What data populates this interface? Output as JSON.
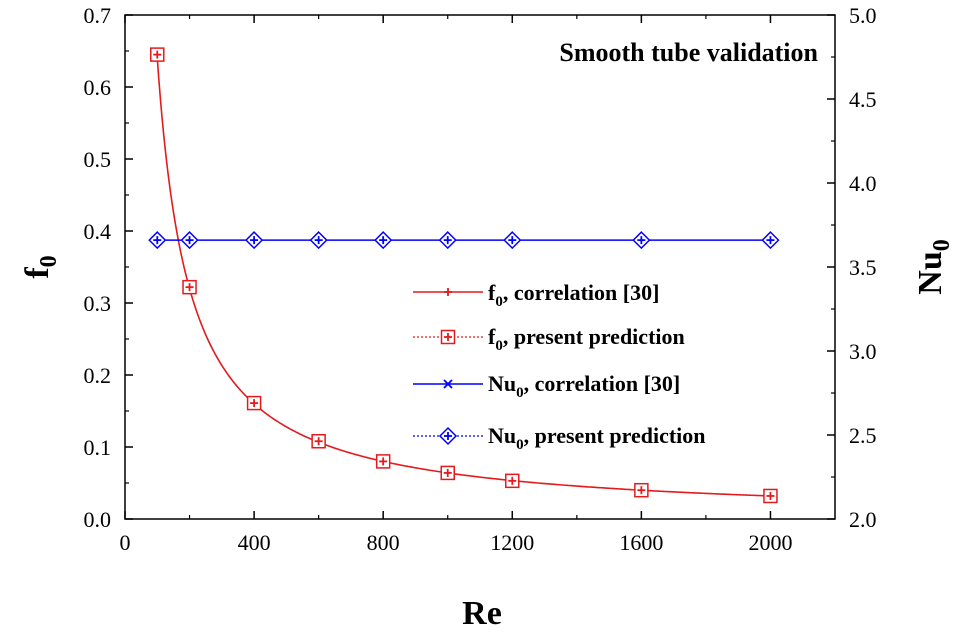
{
  "chart_data": {
    "type": "line",
    "title": "Smooth tube validation",
    "xlabel": "Re",
    "ylabel_left": "f",
    "ylabel_left_sub": "0",
    "ylabel_right": "Nu",
    "ylabel_right_sub": "0",
    "xlim": [
      0,
      2200
    ],
    "ylim_left": [
      0.0,
      0.7
    ],
    "ylim_right": [
      2.0,
      5.0
    ],
    "x_ticks": [
      0,
      400,
      800,
      1200,
      1600,
      2000
    ],
    "x_tick_labels": [
      "0",
      "400",
      "800",
      "1200",
      "1600",
      "2000"
    ],
    "y_left_ticks": [
      0.0,
      0.1,
      0.2,
      0.3,
      0.4,
      0.5,
      0.6,
      0.7
    ],
    "y_left_tick_labels": [
      "0.0",
      "0.1",
      "0.2",
      "0.3",
      "0.4",
      "0.5",
      "0.6",
      "0.7"
    ],
    "y_right_ticks": [
      2.0,
      2.5,
      3.0,
      3.5,
      4.0,
      4.5,
      5.0
    ],
    "y_right_tick_labels": [
      "2.0",
      "2.5",
      "3.0",
      "3.5",
      "4.0",
      "4.5",
      "5.0"
    ],
    "x_points": [
      100,
      200,
      400,
      600,
      800,
      1000,
      1200,
      1600,
      2000
    ],
    "series": [
      {
        "name_main": "f",
        "name_sub": "0",
        "name_rest": ", correlation [30]",
        "axis": "left",
        "style": "solid-line-plus",
        "color": "#e41a1c",
        "formula": "64/Re"
      },
      {
        "name_main": "f",
        "name_sub": "0",
        "name_rest": ", present prediction",
        "axis": "left",
        "style": "dotted-square",
        "color": "#e41a1c",
        "values": [
          0.645,
          0.322,
          0.161,
          0.108,
          0.08,
          0.064,
          0.053,
          0.04,
          0.032
        ]
      },
      {
        "name_main": "Nu",
        "name_sub": "0",
        "name_rest": ", correlation [30]",
        "axis": "right",
        "style": "solid-line-x",
        "color": "#0000ff",
        "values": [
          3.66,
          3.66,
          3.66,
          3.66,
          3.66,
          3.66,
          3.66,
          3.66,
          3.66
        ]
      },
      {
        "name_main": "Nu",
        "name_sub": "0",
        "name_rest": ", present prediction",
        "axis": "right",
        "style": "dotted-diamond",
        "color": "#0000ff",
        "values": [
          3.66,
          3.66,
          3.66,
          3.66,
          3.66,
          3.66,
          3.66,
          3.66,
          3.66
        ]
      }
    ]
  }
}
